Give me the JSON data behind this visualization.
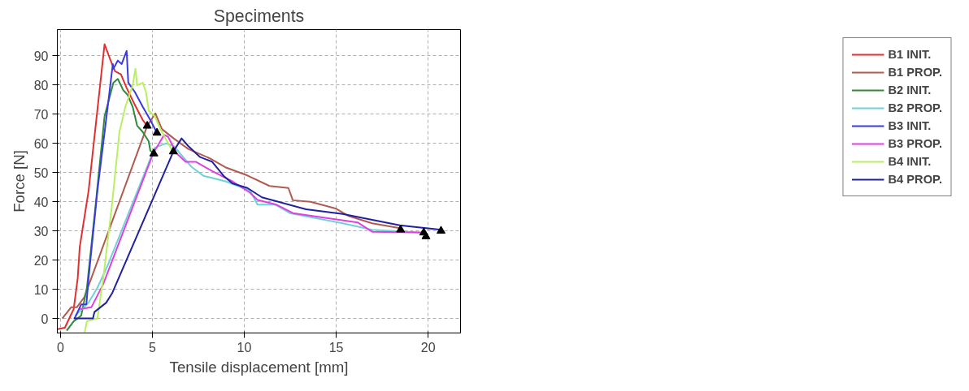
{
  "chart_data": {
    "type": "line",
    "title": "Speciments",
    "xlabel": "Tensile displacement [mm]",
    "ylabel": "Force [N]",
    "xlim": [
      -0.17,
      21.76
    ],
    "ylim": [
      -5,
      99
    ],
    "xticks": [
      0,
      5,
      10,
      15,
      20
    ],
    "yticks": [
      0,
      10,
      20,
      30,
      40,
      50,
      60,
      70,
      80,
      90
    ],
    "grid": true,
    "legend": "right",
    "line_style": "solid",
    "series": [
      {
        "name": "B1 INIT.",
        "color": "#e03030",
        "x": [
          -0.15,
          0.24,
          0.72,
          0.94,
          1.05,
          1.53,
          2.4,
          2.73,
          2.97,
          3.29,
          3.6,
          4.08,
          4.48,
          4.72
        ],
        "values": [
          -3.7,
          -3.2,
          3.2,
          13.8,
          24.5,
          43.7,
          94,
          88.4,
          84.7,
          83.7,
          79,
          72.8,
          68,
          66
        ]
      },
      {
        "name": "B1 PROP.",
        "color": "#b05a50",
        "x": [
          0.1,
          0.58,
          0.89,
          1.3,
          1.68,
          4.72,
          5.16,
          5.52,
          6.16,
          6.95,
          8.08,
          8.97,
          10.17,
          11.37,
          12.4,
          12.64,
          13.6,
          14.96,
          15.68,
          16.95,
          18.4,
          18.5
        ],
        "values": [
          0,
          3.8,
          3.8,
          7.3,
          13.8,
          66,
          70.3,
          64.9,
          61.7,
          58.1,
          55,
          51.8,
          49,
          45.4,
          44.7,
          40.5,
          40,
          37.7,
          35.1,
          32.6,
          31,
          30.4
        ]
      },
      {
        "name": "B2 INIT.",
        "color": "#2e8b3a",
        "x": [
          0.34,
          0.72,
          1.13,
          1.44,
          1.92,
          2.4,
          2.88,
          3.12,
          3.41,
          3.65,
          3.93,
          4.17,
          4.48,
          4.8,
          4.89,
          5.08
        ],
        "values": [
          -4.2,
          -1,
          1,
          10.5,
          39.3,
          69.3,
          80.8,
          82.1,
          78.3,
          76.7,
          72.5,
          66.1,
          63.9,
          60.7,
          57.5,
          56.5
        ]
      },
      {
        "name": "B2 PROP.",
        "color": "#6fd3d6",
        "x": [
          0.82,
          1.53,
          2.01,
          2.57,
          5.13,
          5.61,
          5.76,
          6.16,
          7.12,
          7.77,
          8.97,
          10.31,
          10.72,
          11.68,
          12.47,
          15.35,
          16.95,
          19.76
        ],
        "values": [
          1,
          5.4,
          10.5,
          18.2,
          58.5,
          59.7,
          60,
          59.1,
          52,
          48.9,
          47,
          43.8,
          39,
          39,
          36.1,
          32.6,
          30.4,
          29.4
        ]
      },
      {
        "name": "B3 INIT.",
        "color": "#3a3ae0",
        "x": [
          0.77,
          1.13,
          1.41,
          1.53,
          2.01,
          2.57,
          2.85,
          2.88,
          3.12,
          3.33,
          3.6,
          3.69,
          4.05,
          4.48,
          4.89,
          5.25
        ],
        "values": [
          0,
          4.8,
          4.8,
          13.8,
          43.7,
          72.5,
          87.2,
          85.6,
          88.4,
          87.2,
          91.7,
          80.8,
          77.6,
          72.5,
          68,
          63.6
        ]
      },
      {
        "name": "B3 PROP.",
        "color": "#e040e0",
        "x": [
          1.05,
          1.68,
          2.33,
          5.04,
          5.64,
          5.85,
          6.33,
          6.81,
          7.36,
          8.25,
          9.35,
          10.31,
          10.72,
          11.75,
          12.64,
          16.16,
          16.95,
          19.83
        ],
        "values": [
          3.2,
          3.8,
          11.8,
          56.5,
          62.9,
          62.3,
          56.5,
          53.7,
          53.7,
          50.5,
          47,
          43.1,
          40.6,
          39,
          36.1,
          32.9,
          29.7,
          29.4
        ]
      },
      {
        "name": "B4 INIT.",
        "color": "#b8f060",
        "x": [
          1.32,
          1.44,
          2.01,
          2.33,
          2.81,
          3.21,
          3.53,
          3.93,
          4.08,
          4.17,
          4.48,
          4.65,
          4.8,
          5.13,
          5.44,
          6.0,
          6.14
        ],
        "values": [
          -4.8,
          -1,
          0,
          13.8,
          39.3,
          63.9,
          72.5,
          79.9,
          85.6,
          79.9,
          80.8,
          77.6,
          71.2,
          69.3,
          64.9,
          58.5,
          57.2
        ]
      },
      {
        "name": "B4 PROP.",
        "color": "#2020a0",
        "x": [
          0.72,
          1.77,
          1.85,
          2.49,
          2.81,
          6.14,
          6.59,
          6.95,
          7.6,
          8.25,
          8.87,
          9.35,
          10.17,
          10.96,
          13.36,
          15.35,
          18.46,
          20.72
        ],
        "values": [
          0,
          0,
          2.2,
          5.4,
          8.6,
          57.2,
          61.7,
          59.1,
          55.3,
          53.7,
          48.9,
          46.3,
          44.7,
          41.5,
          37.4,
          35.8,
          31.9,
          30.4
        ]
      },
      {
        "type": "scatter",
        "marker": "triangle",
        "color": "#000000",
        "x": [
          4.72,
          5.25,
          5.08,
          6.14,
          18.5,
          19.76,
          19.88,
          20.7
        ],
        "values": [
          66,
          63.6,
          56.5,
          57.2,
          30.4,
          29.4,
          28.1,
          30
        ]
      }
    ]
  }
}
